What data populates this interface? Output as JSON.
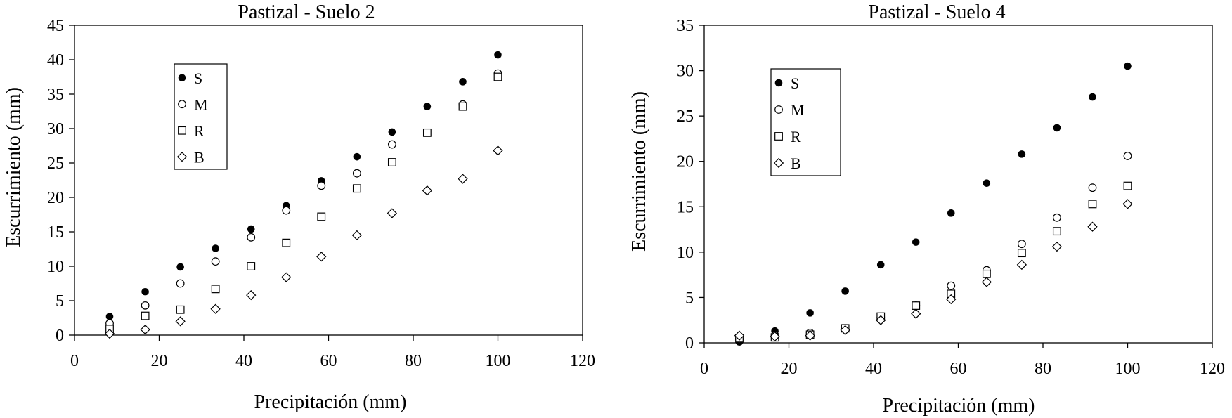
{
  "colors": {
    "ink": "#000000",
    "background": "#ffffff"
  },
  "chart_data": [
    {
      "type": "scatter",
      "title": "Pastizal - Suelo 2",
      "xlabel": "Precipitación (mm)",
      "ylabel": "Escurrimiento (mm)",
      "xlim": [
        0,
        120
      ],
      "ylim": [
        0,
        45
      ],
      "xticks": [
        0,
        20,
        40,
        60,
        80,
        100,
        120
      ],
      "yticks": [
        0,
        5,
        10,
        15,
        20,
        25,
        30,
        35,
        40,
        45
      ],
      "grid": false,
      "legend_position": "top-left",
      "x": [
        8.3,
        16.7,
        25,
        33.3,
        41.7,
        50,
        58.3,
        66.7,
        75,
        83.3,
        91.7,
        100
      ],
      "series": [
        {
          "name": "S",
          "marker": "filled-circle",
          "values": [
            2.7,
            6.3,
            9.9,
            12.6,
            15.4,
            18.8,
            22.4,
            25.9,
            29.5,
            33.2,
            36.8,
            40.7
          ]
        },
        {
          "name": "M",
          "marker": "open-circle",
          "values": [
            1.7,
            4.3,
            7.5,
            10.7,
            14.2,
            18.1,
            21.7,
            23.5,
            27.7,
            null,
            33.5,
            38.0
          ]
        },
        {
          "name": "R",
          "marker": "open-square",
          "values": [
            0.9,
            2.8,
            3.7,
            6.7,
            10.0,
            13.4,
            17.2,
            21.3,
            25.1,
            29.4,
            33.2,
            37.5
          ]
        },
        {
          "name": "B",
          "marker": "open-diamond",
          "values": [
            0.2,
            0.8,
            2.0,
            3.8,
            5.8,
            8.4,
            11.4,
            14.5,
            17.7,
            21.0,
            22.7,
            26.8
          ]
        }
      ]
    },
    {
      "type": "scatter",
      "title": "Pastizal - Suelo 4",
      "xlabel": "Precipitación (mm)",
      "ylabel": "Escurrimiento (mm)",
      "xlim": [
        0,
        120
      ],
      "ylim": [
        0,
        35
      ],
      "xticks": [
        0,
        20,
        40,
        60,
        80,
        100,
        120
      ],
      "yticks": [
        0,
        5,
        10,
        15,
        20,
        25,
        30,
        35
      ],
      "grid": false,
      "legend_position": "top-left",
      "x": [
        8.3,
        16.7,
        25,
        33.3,
        41.7,
        50,
        58.3,
        66.7,
        75,
        83.3,
        91.7,
        100
      ],
      "series": [
        {
          "name": "S",
          "marker": "filled-circle",
          "values": [
            0.1,
            1.3,
            3.3,
            5.7,
            8.6,
            11.1,
            14.3,
            17.6,
            20.8,
            23.7,
            27.1,
            30.5
          ]
        },
        {
          "name": "M",
          "marker": "open-circle",
          "values": [
            0.4,
            0.8,
            1.1,
            1.6,
            2.8,
            4.1,
            6.3,
            8.0,
            10.9,
            13.8,
            17.1,
            20.6
          ]
        },
        {
          "name": "R",
          "marker": "open-square",
          "values": [
            0.5,
            0.6,
            0.9,
            1.6,
            2.9,
            4.1,
            5.4,
            7.6,
            9.9,
            12.3,
            15.3,
            17.3
          ]
        },
        {
          "name": "B",
          "marker": "open-diamond",
          "values": [
            0.8,
            0.7,
            0.8,
            1.4,
            2.5,
            3.2,
            4.8,
            6.7,
            8.6,
            10.6,
            12.8,
            15.3
          ]
        }
      ]
    }
  ]
}
